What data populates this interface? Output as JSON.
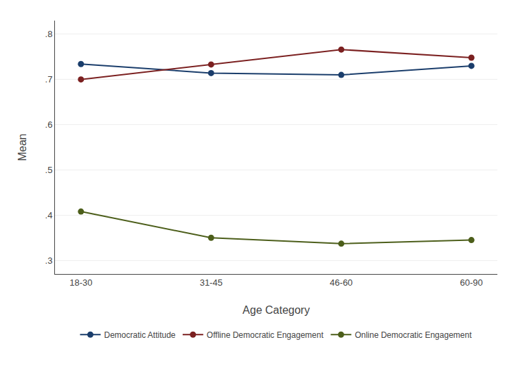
{
  "chart_data": {
    "type": "line",
    "xlabel": "Age Category",
    "ylabel": "Mean",
    "categories": [
      "18-30",
      "31-45",
      "46-60",
      "60-90"
    ],
    "series": [
      {
        "name": "Democratic Attitude",
        "color": "#1a3d6b",
        "marker": "circle",
        "values": [
          0.734,
          0.714,
          0.71,
          0.73
        ]
      },
      {
        "name": "Offline Democratic Engagement",
        "color": "#7b2020",
        "marker": "circle",
        "values": [
          0.7,
          0.733,
          0.766,
          0.748
        ]
      },
      {
        "name": "Online Democratic Engagement",
        "color": "#4c5e1a",
        "marker": "circle",
        "values": [
          0.408,
          0.35,
          0.337,
          0.345
        ]
      }
    ],
    "ylim": [
      0.27,
      0.83
    ],
    "yticks": [
      {
        "value": 0.3,
        "label": ".3"
      },
      {
        "value": 0.4,
        "label": ".4"
      },
      {
        "value": 0.5,
        "label": ".5"
      },
      {
        "value": 0.6,
        "label": ".6"
      },
      {
        "value": 0.7,
        "label": ".7"
      },
      {
        "value": 0.8,
        "label": ".8"
      }
    ],
    "grid": "y",
    "legend": "bottom"
  }
}
